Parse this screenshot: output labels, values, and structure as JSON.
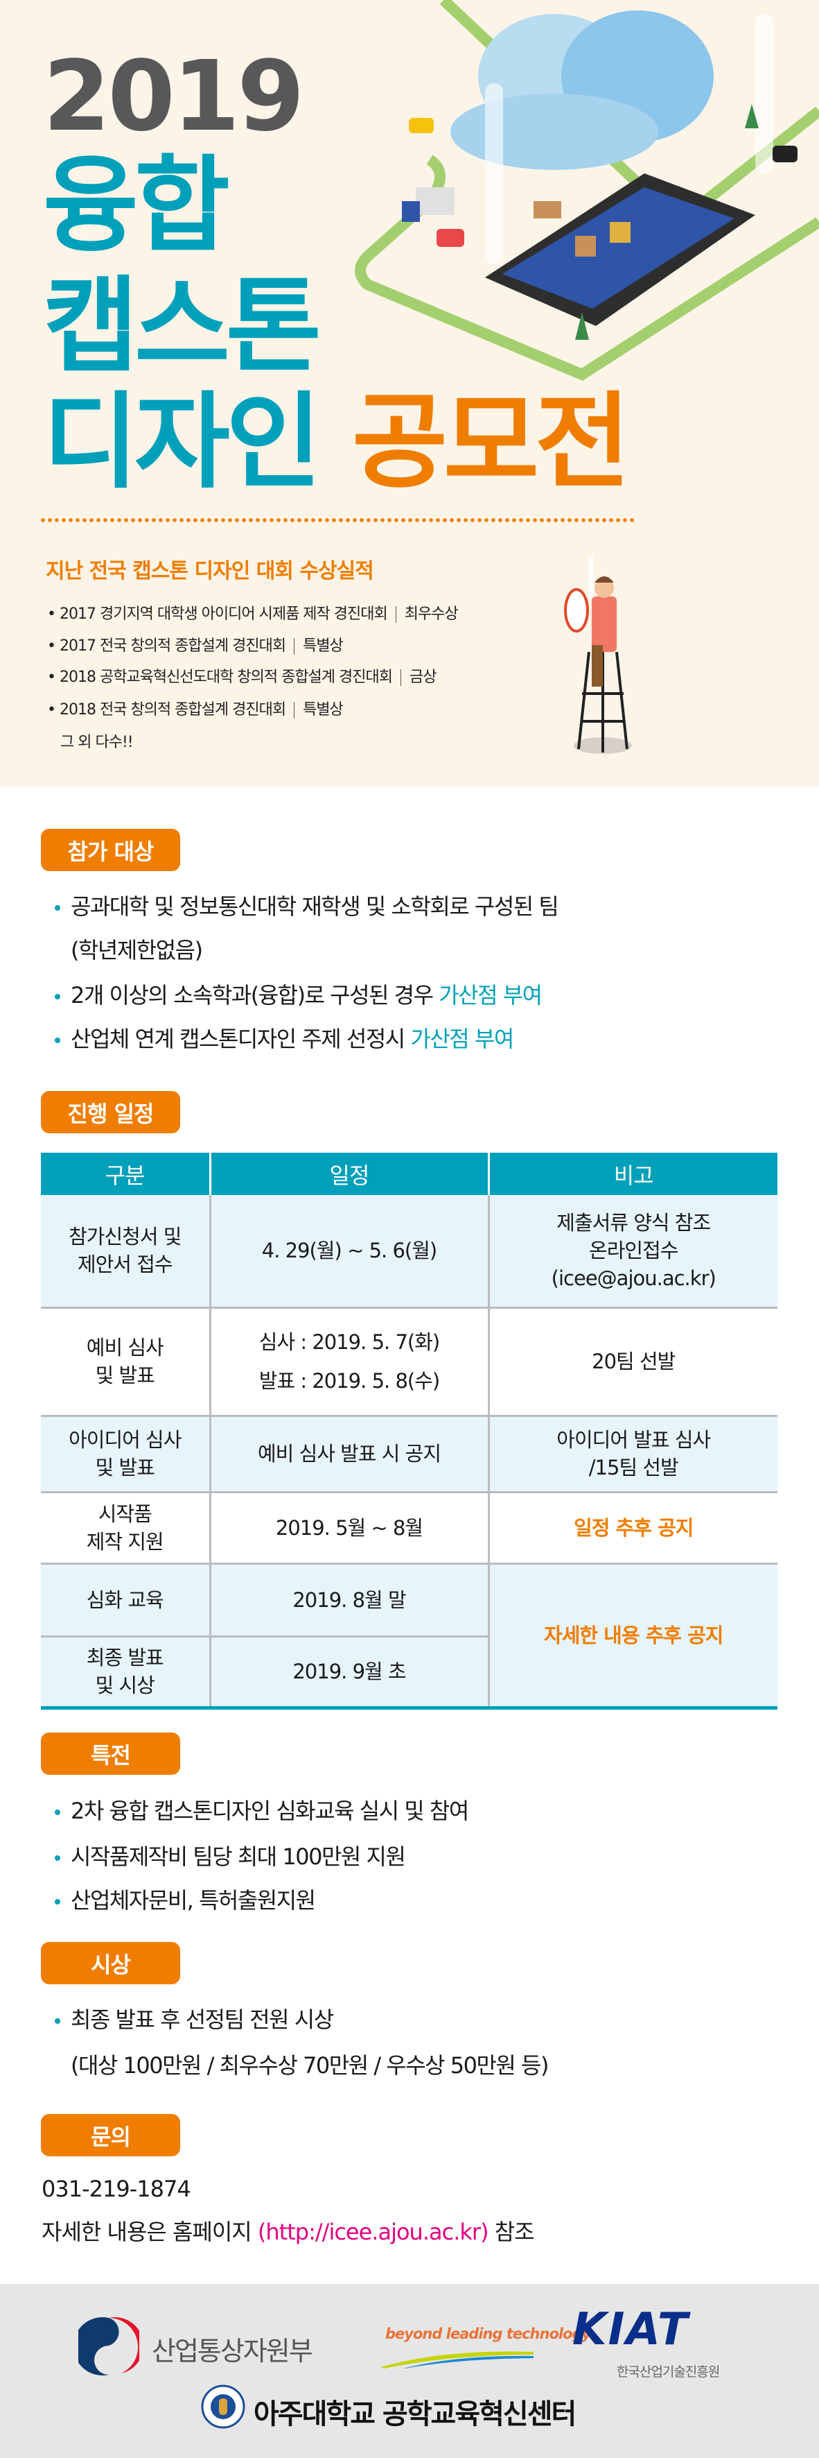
{
  "hero": {
    "year": "2019",
    "title_line1": "융합",
    "title_line2": "캡스톤",
    "title_line3a": "디자인",
    "title_line3b": "공모전"
  },
  "awards": {
    "title": "지난 전국 캡스톤 디자인 대회 수상실적",
    "items": [
      {
        "name": "2017 경기지역 대학생 아이디어 시제품 제작 경진대회",
        "award": "최우수상"
      },
      {
        "name": "2017 전국 창의적 종합설계 경진대회",
        "award": "특별상"
      },
      {
        "name": "2018 공학교육혁신선도대학 창의적 종합설계 경진대회",
        "award": "금상"
      },
      {
        "name": "2018 전국 창의적 종합설계 경진대회",
        "award": "특별상"
      }
    ],
    "more": "그 외 다수!!"
  },
  "eligibility": {
    "badge": "참가 대상",
    "item1": "공과대학 및 정보통신대학 재학생 및 소학회로 구성된 팀",
    "item1_cont": "(학년제한없음)",
    "item2": "2개 이상의 소속학과(융합)로 구성된 경우 ",
    "item2_hl": "가산점 부여",
    "item3": "산업체 연계 캡스톤디자인 주제 선정시 ",
    "item3_hl": "가산점 부여"
  },
  "schedule": {
    "badge": "진행 일정",
    "headers": [
      "구분",
      "일정",
      "비고"
    ],
    "rows": [
      {
        "stage": "참가신청서 및\n제안서 접수",
        "date": "4. 29(월) ~ 5. 6(월)",
        "note": "제출서류 양식 참조\n온라인접수\n(icee@ajou.ac.kr)"
      },
      {
        "stage": "예비 심사\n및 발표",
        "date": "심사 : 2019. 5. 7(화)\n발표 : 2019. 5. 8(수)",
        "note": "20팀 선발"
      },
      {
        "stage": "아이디어 심사\n및 발표",
        "date": "예비 심사 발표 시 공지",
        "note": "아이디어 발표 심사\n/15팀 선발"
      },
      {
        "stage": "시작품\n제작 지원",
        "date": "2019. 5월 ~ 8월",
        "note": "일정 추후 공지"
      },
      {
        "stage": "심화 교육",
        "date": "2019. 8월 말",
        "note": "자세한 내용 추후 공지"
      },
      {
        "stage": "최종 발표\n및 시상",
        "date": "2019. 9월 초"
      }
    ]
  },
  "benefits": {
    "badge": "특전",
    "items": [
      "2차 융합 캡스톤디자인 심화교육 실시 및 참여",
      "시작품제작비 팀당 최대 100만원 지원",
      "산업체자문비, 특허출원지원"
    ]
  },
  "prize": {
    "badge": "시상",
    "item": "최종 발표 후 선정팀 전원 시상",
    "item_cont": "(대상 100만원 / 최우수상 70만원 / 우수상 50만원 등)"
  },
  "contact": {
    "badge": "문의",
    "phone": "031-219-1874",
    "text_pre": "자세한 내용은 홈페이지 ",
    "url": "(http://icee.ajou.ac.kr)",
    "text_post": " 참조"
  },
  "footer": {
    "ministry": "산업통상자원부",
    "slogan": "beyond leading technology",
    "kiat": "KIAT",
    "kiat_sub": "한국산업기술진흥원",
    "ajou": "아주대학교 공학교육혁신센터",
    "seal_text": "AJOU UNIVERSITY 1973"
  },
  "colors": {
    "teal": "#00a0ba",
    "orange": "#ef7d00",
    "cream": "#fdf4e8",
    "link": "#e4007f",
    "row": "#e8f4fc"
  }
}
